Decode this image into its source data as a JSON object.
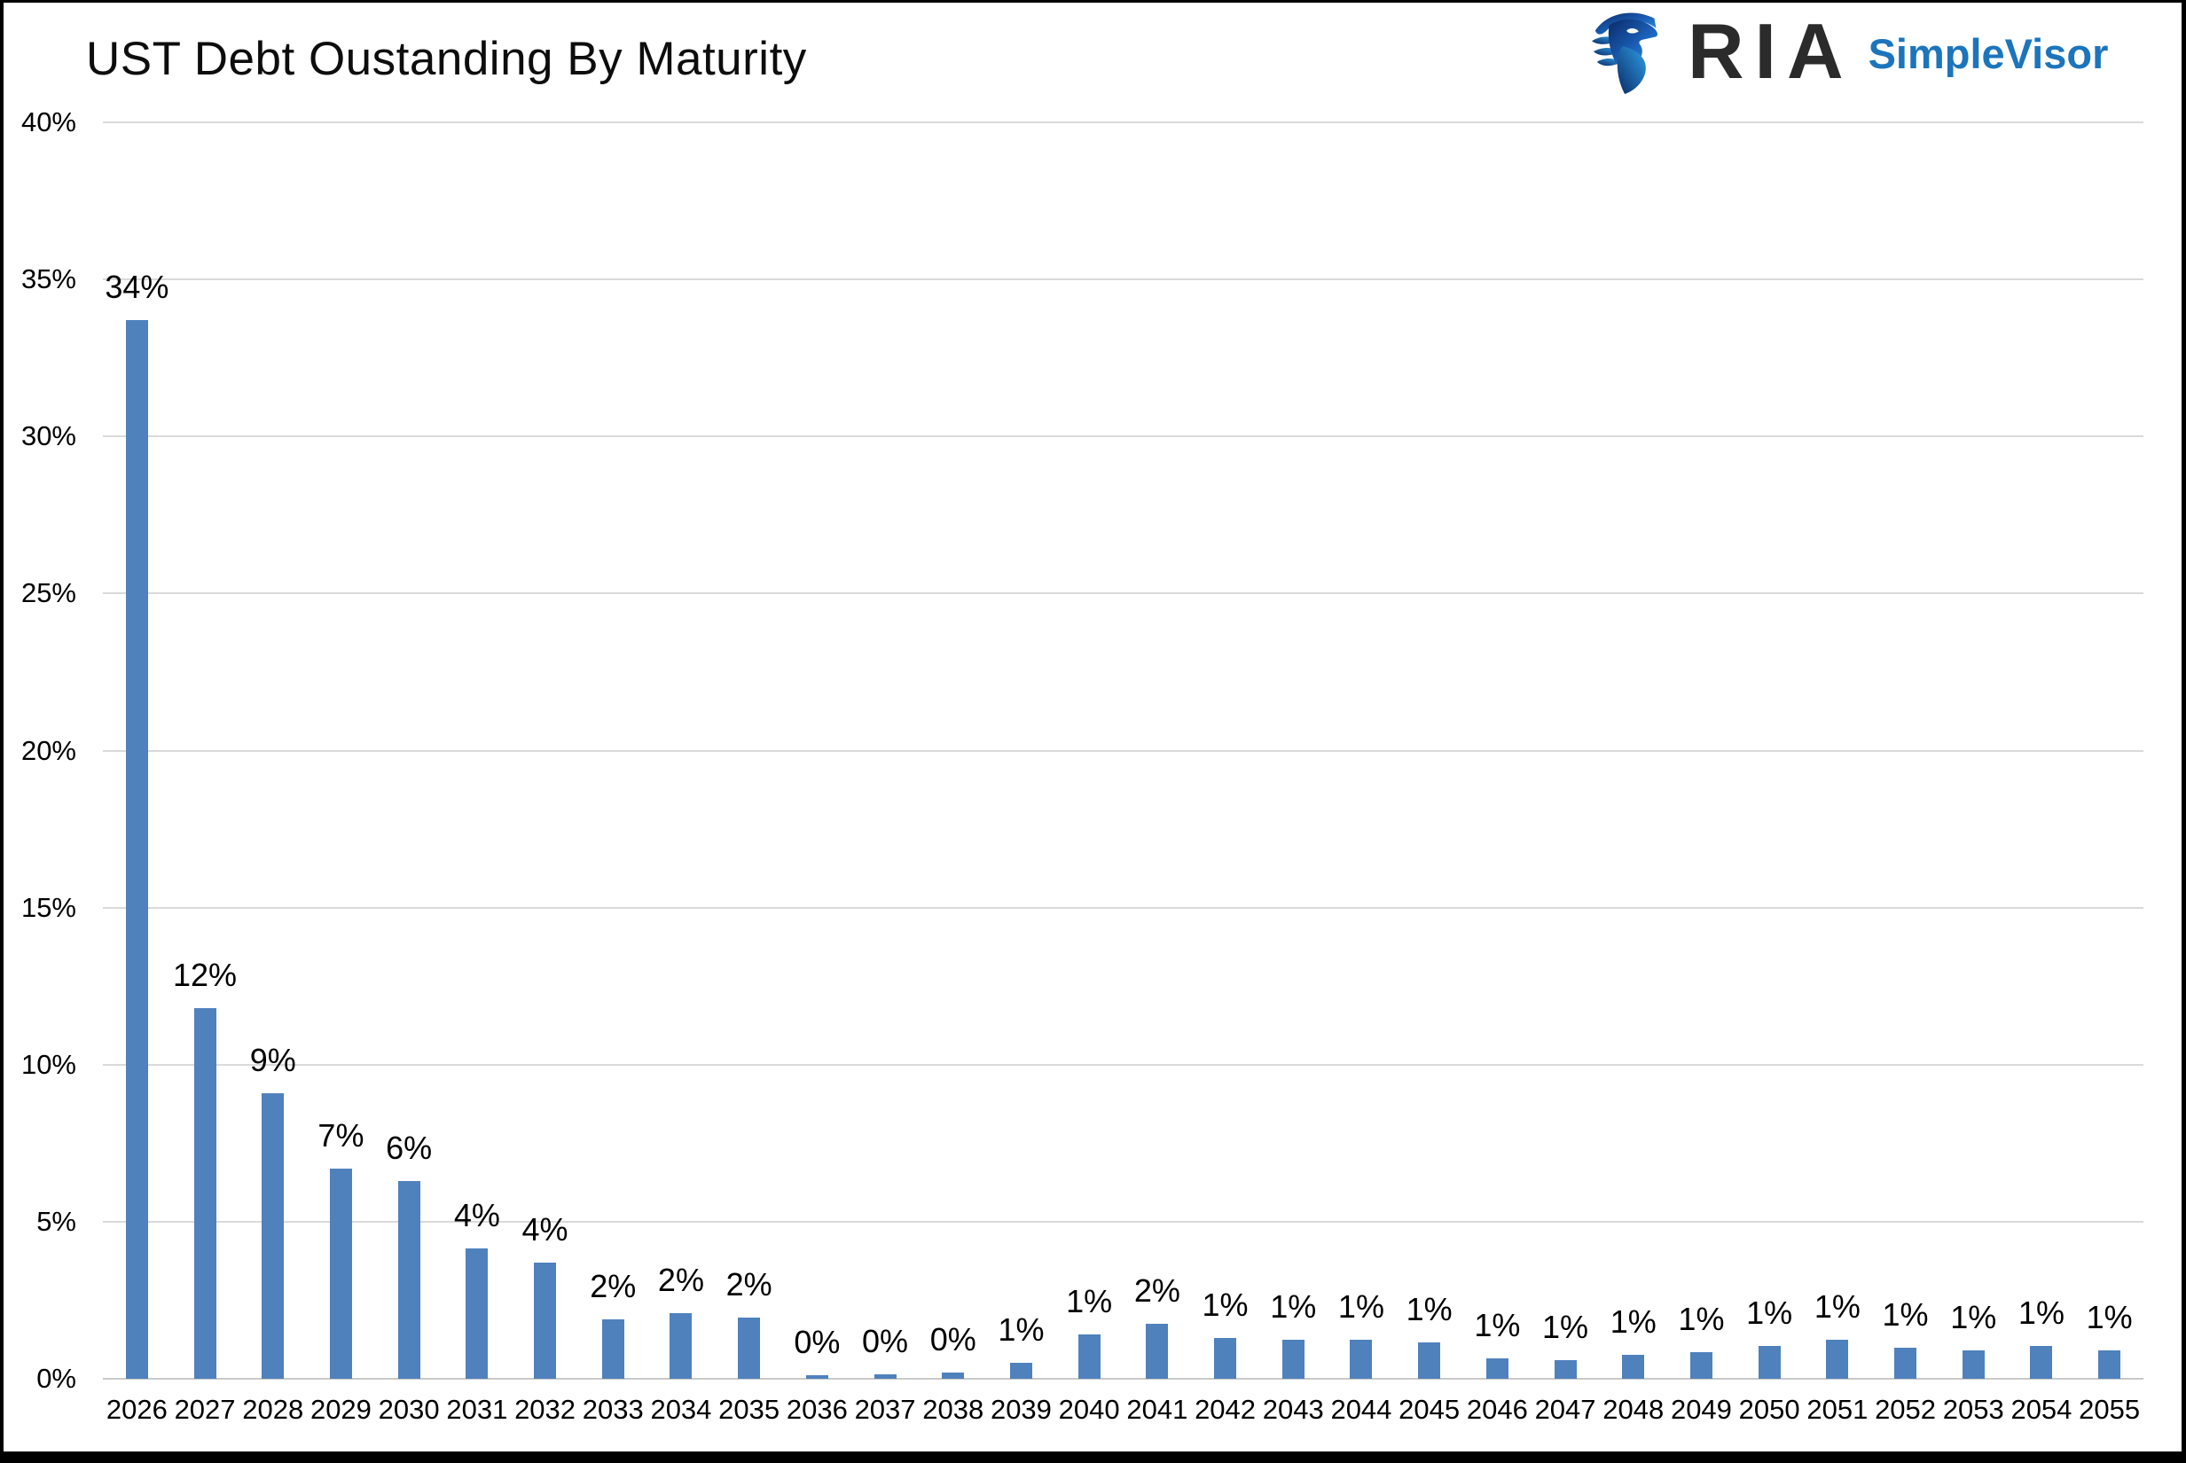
{
  "title": "UST Debt Oustanding By Maturity",
  "logo": {
    "icon": "ria-eagle-shield-icon",
    "ria_text": "RIA",
    "simplevisor_text": "SimpleVisor"
  },
  "colors": {
    "bar": "#4F81BD",
    "gridline": "#DADADA",
    "baseline": "#C9C9C9",
    "title_text": "#0D0D0D",
    "axis_text": "#000000",
    "ria_text": "#2B2B2B",
    "simplevisor_text": "#1C75BC",
    "frame": "#000000",
    "background": "#FFFFFF",
    "logo_gradient_dark": "#0A2A66",
    "logo_gradient_light": "#2F9FE8"
  },
  "chart_data": {
    "type": "bar",
    "title": "UST Debt Oustanding By Maturity",
    "xlabel": "",
    "ylabel": "",
    "ylim": [
      0,
      40
    ],
    "grid": true,
    "legend": false,
    "categories": [
      "2026",
      "2027",
      "2028",
      "2029",
      "2030",
      "2031",
      "2032",
      "2033",
      "2034",
      "2035",
      "2036",
      "2037",
      "2038",
      "2039",
      "2040",
      "2041",
      "2042",
      "2043",
      "2044",
      "2045",
      "2046",
      "2047",
      "2048",
      "2049",
      "2050",
      "2051",
      "2052",
      "2053",
      "2054",
      "2055"
    ],
    "values": [
      33.7,
      11.8,
      9.1,
      6.7,
      6.3,
      4.15,
      3.7,
      1.9,
      2.1,
      1.95,
      0.1,
      0.15,
      0.2,
      0.5,
      1.4,
      1.75,
      1.3,
      1.25,
      1.25,
      1.15,
      0.65,
      0.6,
      0.75,
      0.85,
      1.05,
      1.25,
      1.0,
      0.9,
      1.05,
      0.9
    ],
    "bar_labels": [
      "34%",
      "12%",
      "9%",
      "7%",
      "6%",
      "4%",
      "4%",
      "2%",
      "2%",
      "2%",
      "0%",
      "0%",
      "0%",
      "1%",
      "1%",
      "2%",
      "1%",
      "1%",
      "1%",
      "1%",
      "1%",
      "1%",
      "1%",
      "1%",
      "1%",
      "1%",
      "1%",
      "1%",
      "1%",
      "1%"
    ],
    "ytick_labels": [
      "0%",
      "5%",
      "10%",
      "15%",
      "20%",
      "25%",
      "30%",
      "35%",
      "40%"
    ]
  }
}
